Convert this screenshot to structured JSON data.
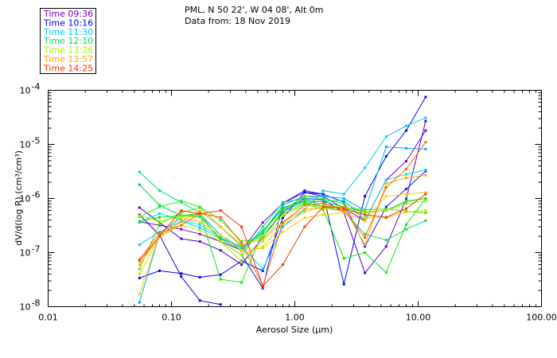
{
  "chart_data": {
    "type": "line",
    "header": {
      "line1": "PML, N 50 22', W 04 08', Alt 0m",
      "line2": "Data from: 18 Nov 2019"
    },
    "xlabel": "Aerosol Size (μm)",
    "ylabel": "dV/d(log R) (cm³/cm³)",
    "x_scale": "log",
    "y_scale": "log",
    "xlim": [
      0.01,
      100
    ],
    "ylim": [
      1e-08,
      0.0001
    ],
    "x_ticks": [
      {
        "value": 0.01,
        "label": "0.01"
      },
      {
        "value": 0.1,
        "label": "0.10"
      },
      {
        "value": 1,
        "label": "1.00"
      },
      {
        "value": 10,
        "label": "10.00"
      },
      {
        "value": 100,
        "label": "100.00"
      }
    ],
    "y_ticks": [
      {
        "value": 1e-08,
        "base": "10",
        "exp": "-8"
      },
      {
        "value": 1e-07,
        "base": "10",
        "exp": "-7"
      },
      {
        "value": 1e-06,
        "base": "10",
        "exp": "-6"
      },
      {
        "value": 1e-05,
        "base": "10",
        "exp": "-5"
      },
      {
        "value": 0.0001,
        "base": "10",
        "exp": "-4"
      }
    ],
    "x": [
      0.055,
      0.08,
      0.12,
      0.17,
      0.25,
      0.37,
      0.55,
      0.8,
      1.2,
      1.7,
      2.5,
      3.7,
      5.5,
      8,
      11.5
    ],
    "series": [
      {
        "name": "Time 09:36",
        "color": "#7a00c8",
        "values": [
          3.7e-07,
          3.2e-07,
          2.7e-07,
          2.2e-07,
          1.6e-07,
          1.1e-07,
          3.6e-07,
          8.2e-07,
          1.3e-06,
          1.1e-06,
          6.5e-07,
          3.9e-07,
          2.2e-06,
          4.9e-06,
          1.8e-05
        ]
      },
      {
        "name": "Time 09:36",
        "color": "#5500cc",
        "values": [
          6.8e-07,
          3.6e-07,
          1.8e-07,
          1.6e-07,
          1.1e-07,
          6e-08,
          1.9e-07,
          5.6e-07,
          1e-06,
          9.5e-07,
          5.5e-07,
          4.2e-08,
          1.3e-07,
          9.8e-07,
          2.7e-05
        ]
      },
      {
        "name": "Time 10:16",
        "color": "#2200dd",
        "values": [
          5e-07,
          2.1e-07,
          3.6e-08,
          1.3e-08,
          1.1e-08,
          null,
          null,
          null,
          null,
          null,
          null,
          null,
          null,
          null,
          null
        ]
      },
      {
        "name": "Time 10:16",
        "color": "#0000ff",
        "values": [
          3.4e-08,
          4.6e-08,
          4.1e-08,
          3.5e-08,
          3.9e-08,
          7e-08,
          4.6e-08,
          4.4e-07,
          1.3e-06,
          1.2e-06,
          2.6e-08,
          1.1e-06,
          6e-06,
          1.8e-05,
          7.5e-05
        ]
      },
      {
        "name": "Time 10:16",
        "color": "#1a1aff",
        "values": [
          null,
          null,
          null,
          null,
          null,
          9e-08,
          2.2e-08,
          8.2e-07,
          1.4e-06,
          1.2e-06,
          8.5e-07,
          1.3e-07,
          7e-07,
          1.5e-06,
          3.2e-06
        ]
      },
      {
        "name": "Time 11:30",
        "color": "#00aaff",
        "values": [
          1.2e-08,
          2.2e-07,
          4.6e-07,
          5.2e-07,
          2.1e-07,
          1.2e-07,
          2.4e-07,
          7.6e-07,
          1.1e-06,
          1.1e-06,
          1e-06,
          6e-07,
          9e-06,
          8.5e-06,
          8.2e-06
        ]
      },
      {
        "name": "Time 11:30",
        "color": "#00ccff",
        "values": [
          1.4e-07,
          2.4e-07,
          3.8e-07,
          2.9e-07,
          1.8e-07,
          1.3e-07,
          5e-08,
          3e-07,
          6.2e-07,
          1.4e-06,
          1.2e-06,
          3.7e-06,
          1.4e-05,
          2.2e-05,
          3.1e-05
        ]
      },
      {
        "name": "Time 11:30",
        "color": "#00dddd",
        "values": [
          3.6e-07,
          5.3e-07,
          4e-07,
          3.3e-07,
          1.9e-07,
          1.2e-07,
          2.6e-07,
          6.2e-07,
          8.2e-07,
          9e-07,
          9.2e-07,
          4e-07,
          2.2e-06,
          2.8e-06,
          3.4e-06
        ]
      },
      {
        "name": "Time 12:10",
        "color": "#00dd66",
        "values": [
          3.1e-06,
          1.4e-06,
          8.5e-07,
          5.4e-07,
          1.6e-07,
          9e-08,
          3e-07,
          8.5e-07,
          1e-06,
          7e-07,
          5.8e-07,
          2.2e-07,
          1.7e-07,
          2.7e-07,
          3.9e-07
        ]
      },
      {
        "name": "Time 12:10",
        "color": "#00cc44",
        "values": [
          1.8e-06,
          7.5e-07,
          4.8e-07,
          4.6e-07,
          1.8e-07,
          1.1e-07,
          2.4e-07,
          6.8e-07,
          9e-07,
          8.8e-07,
          7e-07,
          5.6e-07,
          6e-07,
          8.8e-07,
          1e-06
        ]
      },
      {
        "name": "Time 12:10",
        "color": "#22ee22",
        "values": [
          4.6e-07,
          7e-07,
          9e-07,
          7e-07,
          4e-07,
          1.6e-07,
          1.9e-07,
          6e-07,
          1.1e-06,
          1e-06,
          8e-07,
          5.5e-07,
          6e-07,
          9e-07,
          1e-06
        ]
      },
      {
        "name": "Time 12:10",
        "color": "#55dd00",
        "values": [
          5e-08,
          3.4e-07,
          5.5e-07,
          6.8e-07,
          3e-07,
          1.3e-07,
          2.2e-07,
          5.2e-07,
          8e-07,
          7.2e-07,
          6.8e-07,
          6.2e-07,
          6.4e-07,
          5.8e-07,
          5.4e-07
        ]
      },
      {
        "name": "Time 12:10",
        "color": "#00ee00",
        "values": [
          3.8e-07,
          4.5e-07,
          4.8e-07,
          5.3e-07,
          3.2e-08,
          2.8e-08,
          2.4e-07,
          6.5e-07,
          8.8e-07,
          6.2e-07,
          7.8e-08,
          1e-07,
          4.3e-08,
          3.3e-07,
          1e-06
        ]
      },
      {
        "name": "Time 13:26",
        "color": "#aaee00",
        "values": [
          4.8e-07,
          3.8e-07,
          4.6e-07,
          5e-07,
          1.6e-07,
          6.8e-08,
          1.6e-07,
          4.8e-07,
          7.5e-07,
          6.6e-07,
          5.8e-07,
          5.5e-07,
          6e-07,
          8e-07,
          9e-07
        ]
      },
      {
        "name": "Time 13:26",
        "color": "#ccdd00",
        "values": [
          4e-08,
          2e-07,
          3.2e-07,
          2.6e-07,
          1.6e-07,
          9e-08,
          1.3e-07,
          3.3e-07,
          5.6e-07,
          7.4e-07,
          7e-07,
          4.4e-07,
          4.4e-07,
          5.6e-07,
          6e-07
        ]
      },
      {
        "name": "Time 13:57",
        "color": "#ffcc00",
        "values": [
          1.7e-08,
          2.2e-07,
          4.4e-07,
          3.7e-07,
          2.1e-07,
          1.1e-07,
          1.2e-07,
          2.4e-07,
          4.4e-07,
          5e-07,
          5.5e-07,
          3.8e-07,
          1.1e-06,
          1.2e-06,
          1.3e-06
        ]
      },
      {
        "name": "Time 13:57",
        "color": "#ffaa00",
        "values": [
          6e-08,
          2e-07,
          3.7e-07,
          5.8e-07,
          3e-07,
          1.4e-07,
          1.8e-07,
          3.6e-07,
          6.4e-07,
          6.5e-07,
          7e-07,
          1.4e-07,
          1.9e-06,
          2.4e-06,
          2.7e-06
        ]
      },
      {
        "name": "Time 14:25",
        "color": "#ff6600",
        "values": [
          7.5e-08,
          2.3e-07,
          3.2e-07,
          5.3e-07,
          4.5e-07,
          1.5e-07,
          2.4e-08,
          3.6e-07,
          7.5e-07,
          8.2e-07,
          6e-07,
          1.9e-07,
          1.6e-06,
          3.5e-06,
          1.1e-05
        ]
      },
      {
        "name": "Time 14:25",
        "color": "#ff3300",
        "values": [
          7e-08,
          2e-07,
          6e-07,
          5.2e-07,
          6e-07,
          3e-07,
          2.4e-08,
          6e-08,
          3e-07,
          7e-07,
          6.6e-07,
          5e-07,
          4.5e-07,
          6.5e-07,
          1.2e-06
        ]
      }
    ],
    "legend": [
      {
        "label": "Time 09:36",
        "color": "#7a00c8"
      },
      {
        "label": "Time 10:16",
        "color": "#0000ff"
      },
      {
        "label": "Time 11:30",
        "color": "#00ccff"
      },
      {
        "label": "Time 12:10",
        "color": "#00dd66"
      },
      {
        "label": "Time 13:26",
        "color": "#aaee00"
      },
      {
        "label": "Time 13:57",
        "color": "#ffaa00"
      },
      {
        "label": "Time 14:25",
        "color": "#ff3300"
      }
    ],
    "legend_position": "top-left",
    "grid": false
  }
}
